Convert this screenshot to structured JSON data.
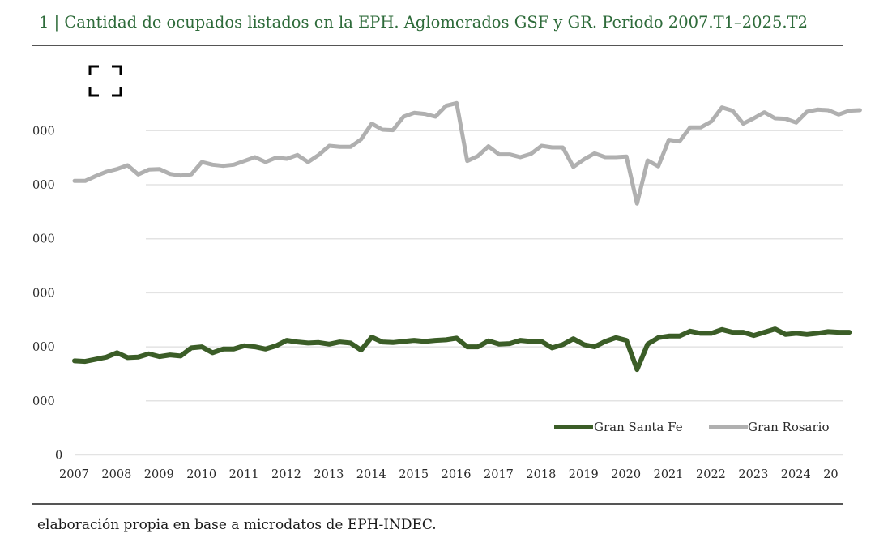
{
  "title": "1 | Cantidad de ocupados listados en la EPH. Aglomerados GSF y GR. Periodo 2007.T1–2025.T2",
  "source": "elaboración propia en base a microdatos de EPH-INDEC.",
  "expand_icon": "fullscreen-icon",
  "colors": {
    "gsf": "#3b5d27",
    "gr": "#b0b0b0",
    "grid": "#e3e3e3",
    "axis": "#555555",
    "title": "#2e6b3a"
  },
  "chart_data": {
    "type": "line",
    "title": "Cantidad de ocupados listados en la EPH. Aglomerados GSF y GR. Periodo 2007.T1–2025.T2",
    "xlabel": "",
    "ylabel": "",
    "ylim": [
      0,
      7
    ],
    "ytick_values": [
      0,
      1,
      2,
      3,
      4,
      5,
      6
    ],
    "ytick_labels": [
      "0",
      "000",
      "000",
      "000",
      "000",
      "000",
      "000"
    ],
    "xlim": [
      2007,
      2025.75
    ],
    "xtick_labels": [
      "2007",
      "2008",
      "2009",
      "2010",
      "2011",
      "2012",
      "2013",
      "2014",
      "2015",
      "2016",
      "2017",
      "2018",
      "2019",
      "2020",
      "2021",
      "2022",
      "2023",
      "2024",
      "20"
    ],
    "legend_position": "bottom-right",
    "series": [
      {
        "name": "Gran Santa Fe",
        "x": [
          2007.0,
          2007.25,
          2007.5,
          2007.75,
          2008.0,
          2008.25,
          2008.5,
          2008.75,
          2009.0,
          2009.25,
          2009.5,
          2009.75,
          2010.0,
          2010.25,
          2010.5,
          2010.75,
          2011.0,
          2011.25,
          2011.5,
          2011.75,
          2012.0,
          2012.25,
          2012.5,
          2012.75,
          2013.0,
          2013.25,
          2013.5,
          2013.75,
          2014.0,
          2014.25,
          2014.5,
          2014.75,
          2015.0,
          2015.25,
          2015.5,
          2015.75,
          2016.0,
          2016.25,
          2016.5,
          2016.75,
          2017.0,
          2017.25,
          2017.5,
          2017.75,
          2018.0,
          2018.25,
          2018.5,
          2018.75,
          2019.0,
          2019.25,
          2019.5,
          2019.75,
          2020.0,
          2020.25,
          2020.5,
          2020.75,
          2021.0,
          2021.25,
          2021.5,
          2021.75,
          2022.0,
          2022.25,
          2022.5,
          2022.75,
          2023.0,
          2023.25,
          2023.5,
          2023.75,
          2024.0,
          2024.25,
          2024.5,
          2024.75,
          2025.0,
          2025.25
        ],
        "values": [
          1.74,
          1.73,
          1.77,
          1.81,
          1.89,
          1.8,
          1.81,
          1.87,
          1.82,
          1.85,
          1.83,
          1.98,
          2.0,
          1.89,
          1.96,
          1.96,
          2.02,
          2.0,
          1.96,
          2.02,
          2.12,
          2.09,
          2.07,
          2.08,
          2.05,
          2.09,
          2.07,
          1.94,
          2.18,
          2.09,
          2.08,
          2.1,
          2.12,
          2.1,
          2.12,
          2.13,
          2.16,
          2.0,
          2.0,
          2.11,
          2.05,
          2.06,
          2.12,
          2.1,
          2.1,
          1.98,
          2.04,
          2.15,
          2.04,
          2.0,
          2.1,
          2.17,
          2.12,
          1.58,
          2.05,
          2.17,
          2.2,
          2.2,
          2.29,
          2.25,
          2.25,
          2.32,
          2.27,
          2.27,
          2.21,
          2.27,
          2.33,
          2.23,
          2.25,
          2.23,
          2.25,
          2.28,
          2.27,
          2.27
        ]
      },
      {
        "name": "Gran Rosario",
        "x": [
          2007.0,
          2007.25,
          2007.5,
          2007.75,
          2008.0,
          2008.25,
          2008.5,
          2008.75,
          2009.0,
          2009.25,
          2009.5,
          2009.75,
          2010.0,
          2010.25,
          2010.5,
          2010.75,
          2011.0,
          2011.25,
          2011.5,
          2011.75,
          2012.0,
          2012.25,
          2012.5,
          2012.75,
          2013.0,
          2013.25,
          2013.5,
          2013.75,
          2014.0,
          2014.25,
          2014.5,
          2014.75,
          2015.0,
          2015.25,
          2015.5,
          2015.75,
          2016.0,
          2016.25,
          2016.5,
          2016.75,
          2017.0,
          2017.25,
          2017.5,
          2017.75,
          2018.0,
          2018.25,
          2018.5,
          2018.75,
          2019.0,
          2019.25,
          2019.5,
          2019.75,
          2020.0,
          2020.25,
          2020.5,
          2020.75,
          2021.0,
          2021.25,
          2021.5,
          2021.75,
          2022.0,
          2022.25,
          2022.5,
          2022.75,
          2023.0,
          2023.25,
          2023.5,
          2023.75,
          2024.0,
          2024.25,
          2024.5,
          2024.75,
          2025.0,
          2025.25,
          2025.5
        ],
        "values": [
          5.07,
          5.07,
          5.16,
          5.24,
          5.29,
          5.36,
          5.19,
          5.28,
          5.29,
          5.2,
          5.17,
          5.19,
          5.42,
          5.37,
          5.35,
          5.37,
          5.44,
          5.51,
          5.42,
          5.5,
          5.48,
          5.55,
          5.42,
          5.55,
          5.72,
          5.7,
          5.7,
          5.84,
          6.13,
          6.02,
          6.01,
          6.26,
          6.33,
          6.31,
          6.26,
          6.46,
          6.51,
          5.44,
          5.53,
          5.71,
          5.56,
          5.56,
          5.51,
          5.57,
          5.72,
          5.69,
          5.69,
          5.33,
          5.47,
          5.58,
          5.51,
          5.51,
          5.52,
          4.65,
          5.45,
          5.34,
          5.83,
          5.8,
          6.06,
          6.06,
          6.17,
          6.43,
          6.37,
          6.13,
          6.23,
          6.34,
          6.23,
          6.22,
          6.15,
          6.35,
          6.39,
          6.38,
          6.3,
          6.37,
          6.38
        ]
      }
    ]
  }
}
